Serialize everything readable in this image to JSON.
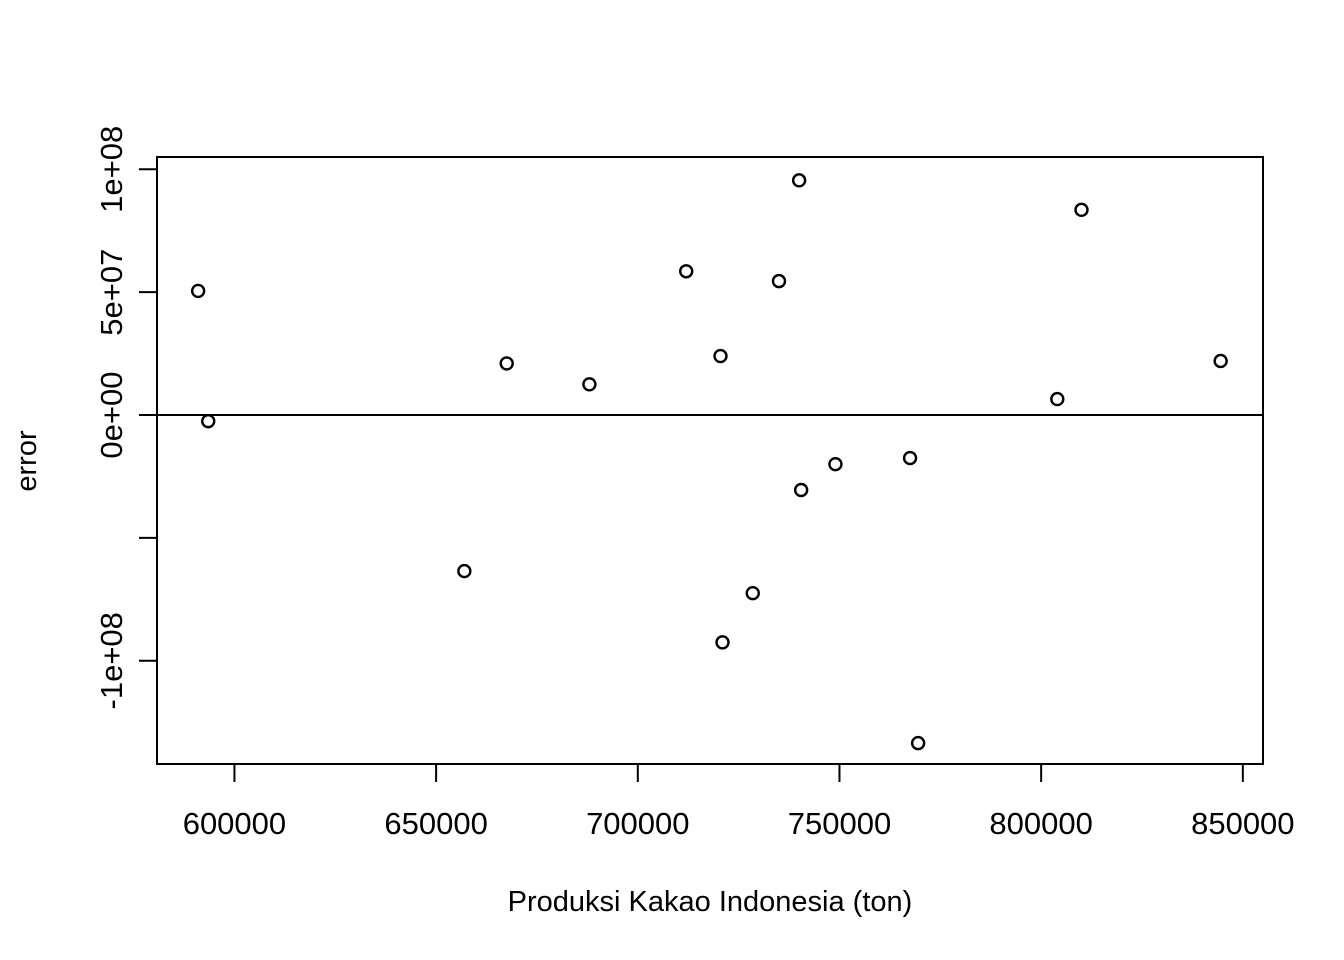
{
  "chart_data": {
    "type": "scatter",
    "title": "",
    "xlabel": "Produksi Kakao Indonesia (ton)",
    "ylabel": "error",
    "xlim": [
      580800,
      855000
    ],
    "ylim": [
      -142000000,
      105000000
    ],
    "x_ticks": [
      600000,
      650000,
      700000,
      750000,
      800000,
      850000
    ],
    "x_tick_labels": [
      "600000",
      "650000",
      "700000",
      "750000",
      "800000",
      "850000"
    ],
    "y_ticks": [
      100000000,
      50000000,
      0,
      -50000000,
      -100000000
    ],
    "y_tick_labels": [
      "1e+08",
      "5e+07",
      "0e+00",
      "",
      "-1e+08"
    ],
    "reference_line_y": 0,
    "grid": false,
    "marker": "open-circle",
    "points": [
      {
        "x": 591000,
        "y": 50500000
      },
      {
        "x": 593500,
        "y": -2500000
      },
      {
        "x": 657000,
        "y": -63500000
      },
      {
        "x": 667500,
        "y": 21000000
      },
      {
        "x": 688000,
        "y": 12500000
      },
      {
        "x": 712000,
        "y": 58500000
      },
      {
        "x": 720500,
        "y": 24000000
      },
      {
        "x": 721000,
        "y": -92500000
      },
      {
        "x": 728500,
        "y": -72500000
      },
      {
        "x": 735000,
        "y": 54500000
      },
      {
        "x": 740000,
        "y": 95500000
      },
      {
        "x": 740500,
        "y": -30500000
      },
      {
        "x": 749000,
        "y": -20000000
      },
      {
        "x": 767500,
        "y": -17500000
      },
      {
        "x": 769500,
        "y": -133500000
      },
      {
        "x": 804000,
        "y": 6500000
      },
      {
        "x": 810000,
        "y": 83500000
      },
      {
        "x": 844500,
        "y": 22000000
      }
    ]
  }
}
